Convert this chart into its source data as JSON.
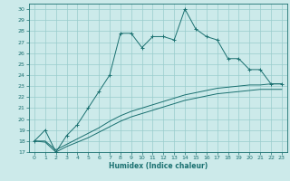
{
  "xlabel": "Humidex (Indice chaleur)",
  "bg_color": "#cceaea",
  "grid_color": "#99cccc",
  "line_color": "#1a7070",
  "xlim": [
    -0.5,
    23.5
  ],
  "ylim": [
    17,
    30.5
  ],
  "yticks": [
    17,
    18,
    19,
    20,
    21,
    22,
    23,
    24,
    25,
    26,
    27,
    28,
    29,
    30
  ],
  "xticks": [
    0,
    1,
    2,
    3,
    4,
    5,
    6,
    7,
    8,
    9,
    10,
    11,
    12,
    13,
    14,
    15,
    16,
    17,
    18,
    19,
    20,
    21,
    22,
    23
  ],
  "main_x": [
    0,
    1,
    2,
    3,
    4,
    5,
    6,
    7,
    8,
    9,
    10,
    11,
    12,
    13,
    14,
    15,
    16,
    17,
    18,
    19,
    20,
    21,
    22,
    23
  ],
  "main_y": [
    18.0,
    19.0,
    17.0,
    18.5,
    19.5,
    21.0,
    22.5,
    24.0,
    27.8,
    27.8,
    26.5,
    27.5,
    27.5,
    27.2,
    30.0,
    28.2,
    27.5,
    27.2,
    25.5,
    25.5,
    24.5,
    24.5,
    23.2,
    23.2
  ],
  "line1_y": [
    18.0,
    18.0,
    17.2,
    17.7,
    18.2,
    18.7,
    19.2,
    19.8,
    20.3,
    20.7,
    21.0,
    21.3,
    21.6,
    21.9,
    22.2,
    22.4,
    22.6,
    22.8,
    22.9,
    23.0,
    23.1,
    23.1,
    23.2,
    23.2
  ],
  "line2_y": [
    18.0,
    17.9,
    17.0,
    17.5,
    17.9,
    18.3,
    18.8,
    19.3,
    19.8,
    20.2,
    20.5,
    20.8,
    21.1,
    21.4,
    21.7,
    21.9,
    22.1,
    22.3,
    22.4,
    22.5,
    22.6,
    22.7,
    22.7,
    22.7
  ]
}
